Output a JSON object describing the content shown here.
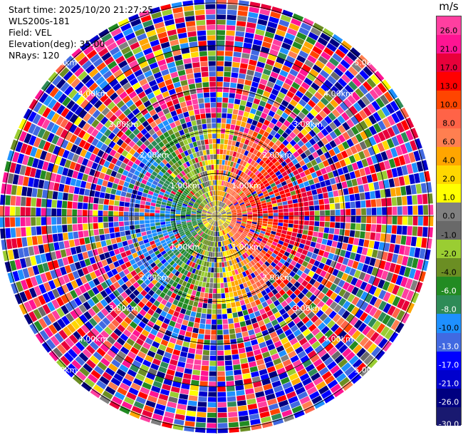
{
  "info": {
    "start_time": "Start time: 2025/10/20 21:27:25",
    "station": "WLS200s-181",
    "field": "Field: VEL",
    "elevation": "Elevation(deg): 35.00",
    "nrays": "NRays: 120"
  },
  "ring_labels": [
    "1.00km",
    "2.00km",
    "3.00km",
    "4.00km",
    "5.00km"
  ],
  "colorbar": {
    "unit": "m/s",
    "ticks": [
      "26.0",
      "21.0",
      "17.0",
      "13.0",
      "10.0",
      "8.0",
      "6.0",
      "4.0",
      "2.0",
      "1.0",
      "0.0",
      "-1.0",
      "-2.0",
      "-4.0",
      "-6.0",
      "-8.0",
      "-10.0",
      "-13.0",
      "-17.0",
      "-21.0",
      "-26.0",
      "-30.0"
    ],
    "colors": [
      "#ff3fa0",
      "#ff1493",
      "#e8003a",
      "#ff0000",
      "#ff4500",
      "#ff6347",
      "#ff7f50",
      "#ffa500",
      "#ffd700",
      "#ffff00",
      "#808080",
      "#696969",
      "#9acd32",
      "#6b8e23",
      "#228b22",
      "#2e8b57",
      "#1e90ff",
      "#4169e1",
      "#0000ff",
      "#0000cd",
      "#000080",
      "#191970"
    ]
  },
  "chart_data": {
    "type": "heatmap",
    "projection": "polar PPI",
    "field": "VEL",
    "nrays": 120,
    "range_km": [
      0,
      5.1
    ],
    "range_rings_km": [
      1,
      2,
      3,
      4,
      5
    ],
    "value_range": [
      -30,
      26
    ],
    "units": "m/s",
    "pattern": "near-field: positive (receding) velocities on east side, negative (approaching) on west side; far-field noisy speckle"
  }
}
